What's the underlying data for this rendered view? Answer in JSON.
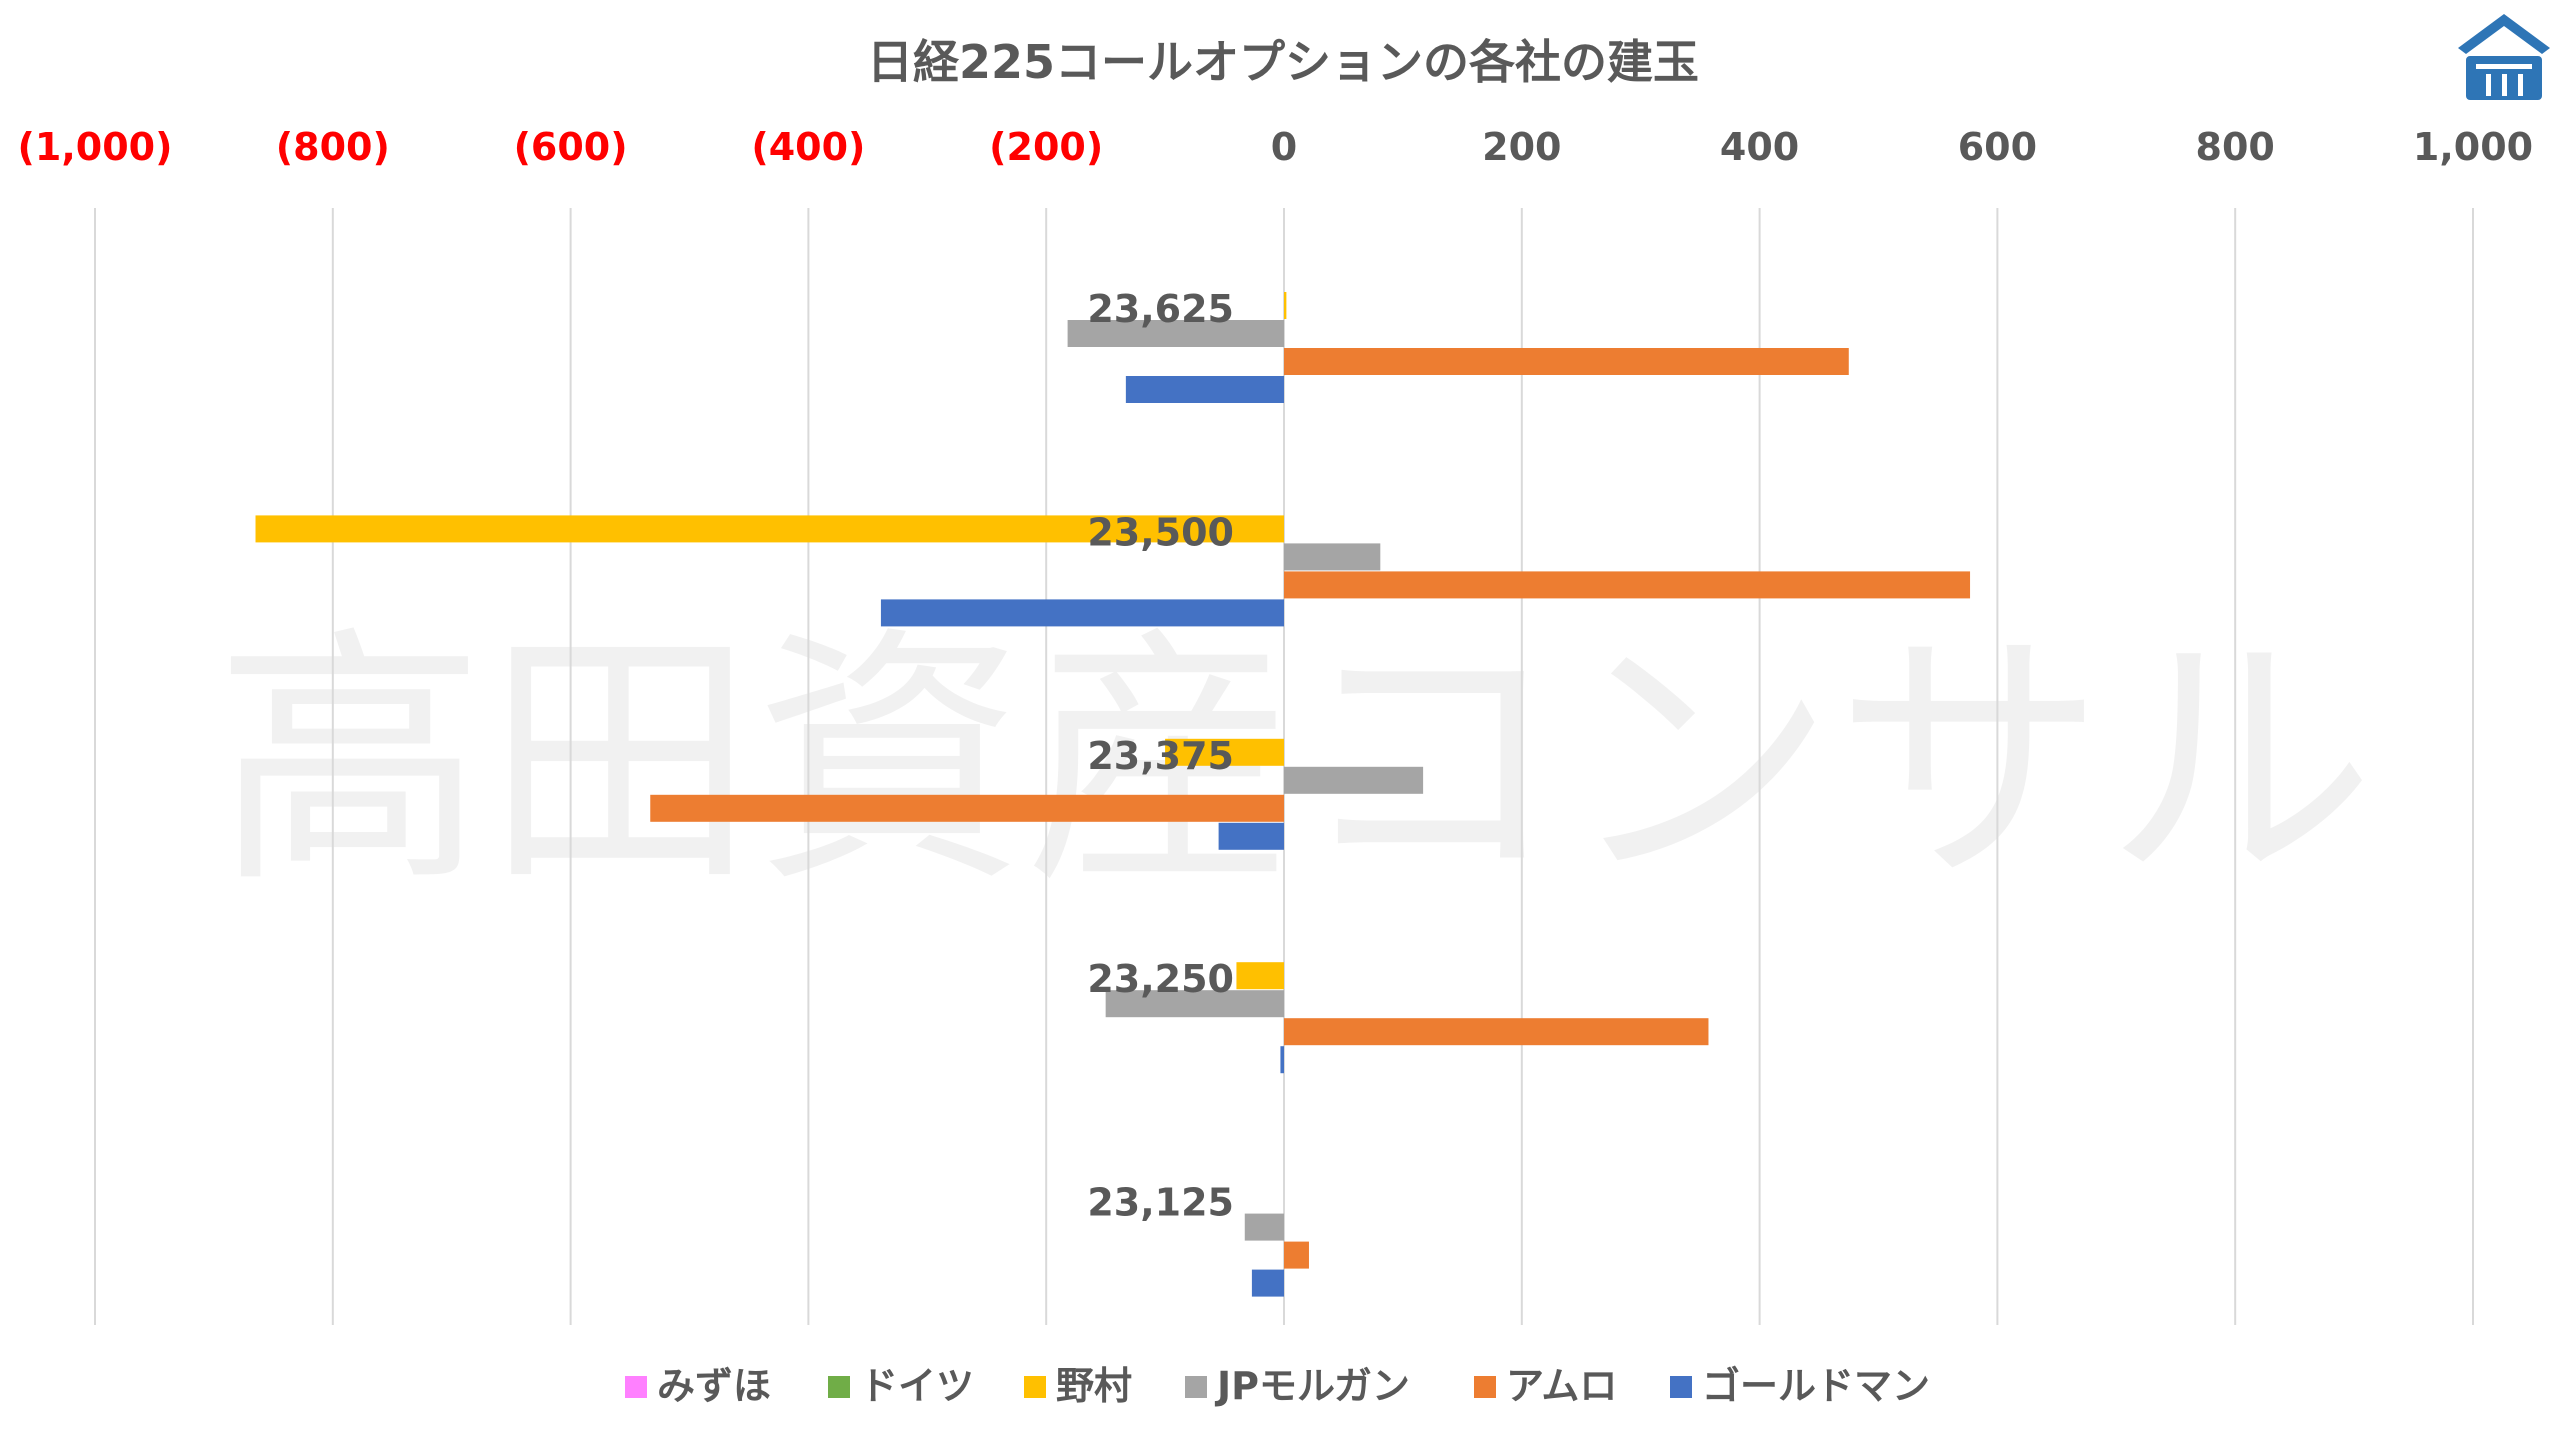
{
  "watermark": "高田資産コンサル",
  "colors": {
    "grid": "#d9d9d9",
    "negative_tick": "#ff0000",
    "positive_tick": "#595959",
    "logo": "#2e75b6"
  },
  "chart_data": {
    "type": "bar",
    "orientation": "horizontal",
    "title": "日経225コールオプションの各社の建玉",
    "xlim": [
      -1000,
      1000
    ],
    "x_ticks": [
      {
        "value": -1000,
        "label": "(1,000)"
      },
      {
        "value": -800,
        "label": "(800)"
      },
      {
        "value": -600,
        "label": "(600)"
      },
      {
        "value": -400,
        "label": "(400)"
      },
      {
        "value": -200,
        "label": "(200)"
      },
      {
        "value": 0,
        "label": "0"
      },
      {
        "value": 200,
        "label": "200"
      },
      {
        "value": 400,
        "label": "400"
      },
      {
        "value": 600,
        "label": "600"
      },
      {
        "value": 800,
        "label": "800"
      },
      {
        "value": 1000,
        "label": "1,000"
      }
    ],
    "grid": true,
    "axis_position": "top",
    "legend_position": "bottom",
    "categories": [
      "23,625",
      "23,500",
      "23,375",
      "23,250",
      "23,125"
    ],
    "series": [
      {
        "name": "みずほ",
        "color": "#ff80ff",
        "values": [
          0,
          0,
          0,
          0,
          0
        ]
      },
      {
        "name": "ドイツ",
        "color": "#70ad47",
        "values": [
          0,
          0,
          0,
          0,
          0
        ]
      },
      {
        "name": "野村",
        "color": "#ffc000",
        "values": [
          2,
          -865,
          -100,
          -40,
          0
        ]
      },
      {
        "name": "JPモルガン",
        "color": "#a5a5a5",
        "values": [
          -182,
          81,
          117,
          -150,
          -33
        ]
      },
      {
        "name": "アムロ",
        "color": "#ed7d31",
        "values": [
          475,
          577,
          -533,
          357,
          21
        ]
      },
      {
        "name": "ゴールドマン",
        "color": "#4472c4",
        "values": [
          -133,
          -339,
          -55,
          -3,
          -27
        ]
      }
    ]
  }
}
